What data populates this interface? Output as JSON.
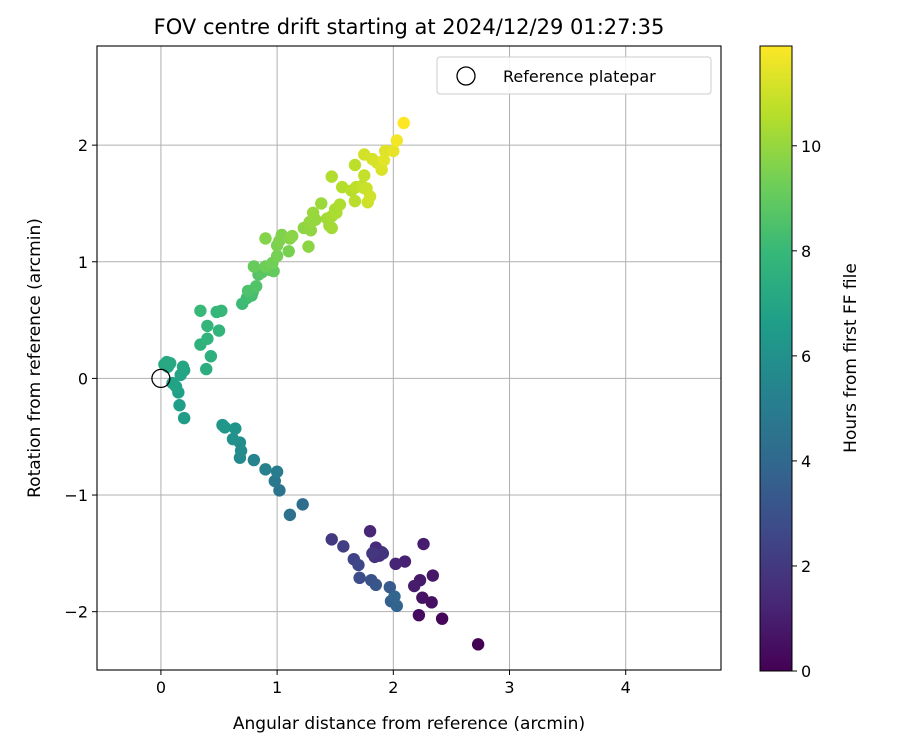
{
  "chart_data": {
    "type": "scatter",
    "title": "FOV centre drift starting at 2024/12/29 01:27:35",
    "xlabel": "Angular distance from reference (arcmin)",
    "ylabel": "Rotation from reference (arcmin)",
    "xlim": [
      -0.55,
      4.82
    ],
    "ylim": [
      -2.5,
      2.85
    ],
    "x_ticks": [
      0,
      1,
      2,
      3,
      4
    ],
    "x_tick_labels": [
      "0",
      "1",
      "2",
      "3",
      "4"
    ],
    "y_ticks": [
      -2,
      -1,
      0,
      1,
      2
    ],
    "y_tick_labels": [
      "−2",
      "−1",
      "0",
      "1",
      "2"
    ],
    "grid": true,
    "legend": {
      "placement": "top-right",
      "entries": [
        "Reference platepar"
      ]
    },
    "reference_point": {
      "x": 0,
      "y": 0,
      "label": "Reference platepar"
    },
    "colormap": "viridis",
    "colorbar": {
      "label": "Hours from first FF file",
      "range": [
        0,
        11.9
      ],
      "ticks": [
        0,
        2,
        4,
        6,
        8,
        10
      ],
      "tick_labels": [
        "0",
        "2",
        "4",
        "6",
        "8",
        "10"
      ]
    },
    "points_columns": [
      "x",
      "y",
      "hours"
    ],
    "points": [
      [
        2.73,
        -2.28,
        0.05
      ],
      [
        2.42,
        -2.06,
        0.2
      ],
      [
        2.22,
        -2.03,
        0.35
      ],
      [
        2.33,
        -1.92,
        0.5
      ],
      [
        2.25,
        -1.88,
        0.6
      ],
      [
        2.34,
        -1.69,
        0.7
      ],
      [
        2.23,
        -1.73,
        0.8
      ],
      [
        2.18,
        -1.78,
        0.9
      ],
      [
        2.26,
        -1.42,
        1.0
      ],
      [
        2.1,
        -1.57,
        1.1
      ],
      [
        2.02,
        -1.59,
        1.2
      ],
      [
        1.8,
        -1.31,
        1.3
      ],
      [
        1.85,
        -1.45,
        1.4
      ],
      [
        1.9,
        -1.49,
        1.5
      ],
      [
        1.88,
        -1.52,
        1.6
      ],
      [
        1.84,
        -1.53,
        1.7
      ],
      [
        1.91,
        -1.5,
        1.8
      ],
      [
        1.82,
        -1.5,
        1.9
      ],
      [
        1.47,
        -1.38,
        2.0
      ],
      [
        1.57,
        -1.44,
        2.2
      ],
      [
        1.66,
        -1.55,
        2.4
      ],
      [
        1.7,
        -1.6,
        2.6
      ],
      [
        1.71,
        -1.71,
        2.8
      ],
      [
        1.81,
        -1.73,
        3.0
      ],
      [
        1.85,
        -1.77,
        3.2
      ],
      [
        1.97,
        -1.79,
        3.4
      ],
      [
        1.98,
        -1.91,
        3.6
      ],
      [
        2.03,
        -1.95,
        3.8
      ],
      [
        2.01,
        -1.87,
        3.9
      ],
      [
        1.22,
        -1.08,
        4.2
      ],
      [
        1.11,
        -1.17,
        4.4
      ],
      [
        1.02,
        -0.96,
        4.6
      ],
      [
        0.98,
        -0.88,
        4.8
      ],
      [
        1.0,
        -0.8,
        5.0
      ],
      [
        0.9,
        -0.78,
        5.2
      ],
      [
        0.8,
        -0.7,
        5.4
      ],
      [
        0.68,
        -0.68,
        5.6
      ],
      [
        0.69,
        -0.62,
        5.7
      ],
      [
        0.68,
        -0.55,
        5.8
      ],
      [
        0.62,
        -0.52,
        6.0
      ],
      [
        0.64,
        -0.43,
        6.1
      ],
      [
        0.53,
        -0.4,
        6.2
      ],
      [
        0.55,
        -0.42,
        6.3
      ],
      [
        0.2,
        -0.34,
        6.5
      ],
      [
        0.16,
        -0.23,
        6.6
      ],
      [
        0.15,
        -0.12,
        6.7
      ],
      [
        0.1,
        -0.04,
        6.8
      ],
      [
        0.13,
        -0.07,
        6.85
      ],
      [
        0.17,
        0.03,
        6.9
      ],
      [
        0.2,
        0.07,
        6.95
      ],
      [
        0.19,
        0.1,
        7.0
      ],
      [
        0.06,
        0.1,
        7.05
      ],
      [
        0.05,
        0.14,
        7.1
      ],
      [
        0.03,
        0.12,
        7.15
      ],
      [
        0.08,
        0.13,
        7.2
      ],
      [
        0.39,
        0.08,
        7.4
      ],
      [
        0.43,
        0.19,
        7.5
      ],
      [
        0.34,
        0.29,
        7.6
      ],
      [
        0.4,
        0.34,
        7.7
      ],
      [
        0.5,
        0.41,
        7.8
      ],
      [
        0.4,
        0.45,
        7.85
      ],
      [
        0.48,
        0.57,
        7.9
      ],
      [
        0.52,
        0.58,
        7.95
      ],
      [
        0.34,
        0.58,
        8.0
      ],
      [
        0.7,
        0.64,
        8.1
      ],
      [
        0.74,
        0.69,
        8.2
      ],
      [
        0.78,
        0.71,
        8.3
      ],
      [
        0.79,
        0.74,
        8.4
      ],
      [
        0.75,
        0.75,
        8.5
      ],
      [
        0.82,
        0.79,
        8.6
      ],
      [
        0.84,
        0.89,
        8.7
      ],
      [
        0.87,
        0.91,
        8.8
      ],
      [
        0.94,
        0.93,
        8.9
      ],
      [
        0.97,
        0.92,
        9.0
      ],
      [
        0.8,
        0.96,
        9.1
      ],
      [
        0.9,
        0.96,
        9.2
      ],
      [
        0.96,
        0.99,
        9.3
      ],
      [
        1.0,
        1.05,
        9.4
      ],
      [
        1.1,
        1.09,
        9.45
      ],
      [
        1.0,
        1.14,
        9.5
      ],
      [
        1.02,
        1.18,
        9.55
      ],
      [
        1.04,
        1.23,
        9.6
      ],
      [
        0.9,
        1.2,
        9.65
      ],
      [
        1.11,
        1.2,
        9.7
      ],
      [
        1.13,
        1.22,
        9.75
      ],
      [
        1.27,
        1.13,
        9.8
      ],
      [
        1.23,
        1.29,
        9.85
      ],
      [
        1.29,
        1.27,
        9.9
      ],
      [
        1.28,
        1.34,
        9.95
      ],
      [
        1.33,
        1.36,
        10.0
      ],
      [
        1.31,
        1.42,
        10.05
      ],
      [
        1.38,
        1.5,
        10.1
      ],
      [
        1.45,
        1.31,
        10.15
      ],
      [
        1.43,
        1.37,
        10.2
      ],
      [
        1.47,
        1.29,
        10.25
      ],
      [
        1.47,
        1.39,
        10.3
      ],
      [
        1.5,
        1.45,
        10.35
      ],
      [
        1.51,
        1.42,
        10.4
      ],
      [
        1.54,
        1.49,
        10.45
      ],
      [
        1.47,
        1.73,
        10.5
      ],
      [
        1.56,
        1.64,
        10.55
      ],
      [
        1.64,
        1.61,
        10.6
      ],
      [
        1.67,
        1.52,
        10.65
      ],
      [
        1.67,
        1.83,
        10.7
      ],
      [
        1.68,
        1.64,
        10.75
      ],
      [
        1.73,
        1.65,
        10.8
      ],
      [
        1.75,
        1.74,
        10.85
      ],
      [
        1.75,
        1.63,
        10.9
      ],
      [
        1.77,
        1.63,
        10.95
      ],
      [
        1.78,
        1.51,
        11.0
      ],
      [
        1.8,
        1.56,
        11.05
      ],
      [
        1.75,
        1.92,
        11.1
      ],
      [
        1.82,
        1.88,
        11.15
      ],
      [
        1.86,
        1.85,
        11.2
      ],
      [
        1.9,
        1.79,
        11.25
      ],
      [
        1.93,
        1.95,
        11.3
      ],
      [
        1.92,
        1.87,
        11.4
      ],
      [
        2.0,
        1.95,
        11.5
      ],
      [
        2.03,
        2.04,
        11.7
      ],
      [
        2.09,
        2.19,
        11.9
      ]
    ]
  }
}
